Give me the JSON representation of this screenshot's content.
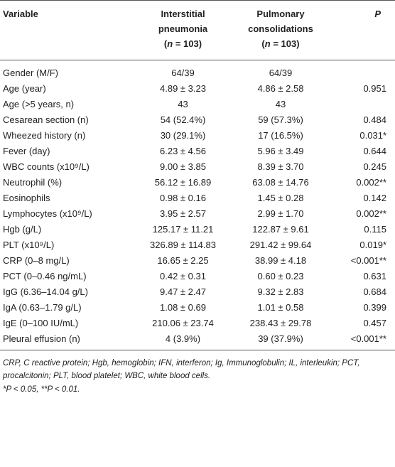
{
  "header": {
    "col1": "Variable",
    "col2_line1": "Interstitial",
    "col2_line2": "pneumonia",
    "col2_n": "n",
    "col2_eq": " = 103)",
    "col3_line1": "Pulmonary",
    "col3_line2": "consolidations",
    "col3_n": "n",
    "col3_eq": " = 103)",
    "col4": "P"
  },
  "rows": [
    {
      "variable": "Gender (M/F)",
      "interstitial": "64/39",
      "pulmonary": "64/39",
      "p": ""
    },
    {
      "variable": "Age (year)",
      "interstitial": "4.89 ± 3.23",
      "pulmonary": "4.86 ± 2.58",
      "p": "0.951"
    },
    {
      "variable": "Age (>5 years, n)",
      "interstitial": "43",
      "pulmonary": "43",
      "p": ""
    },
    {
      "variable": "Cesarean section (n)",
      "interstitial": "54 (52.4%)",
      "pulmonary": "59 (57.3%)",
      "p": "0.484"
    },
    {
      "variable": "Wheezed history (n)",
      "interstitial": "30 (29.1%)",
      "pulmonary": "17 (16.5%)",
      "p": "0.031*"
    },
    {
      "variable": "Fever (day)",
      "interstitial": "6.23 ± 4.56",
      "pulmonary": "5.96 ± 3.49",
      "p": "0.644"
    },
    {
      "variable": "WBC counts (x10⁹/L)",
      "interstitial": "9.00 ± 3.85",
      "pulmonary": "8.39 ± 3.70",
      "p": "0.245"
    },
    {
      "variable": "Neutrophil (%)",
      "interstitial": "56.12 ± 16.89",
      "pulmonary": "63.08 ± 14.76",
      "p": "0.002**"
    },
    {
      "variable": "Eosinophils",
      "interstitial": "0.98 ± 0.16",
      "pulmonary": "1.45 ± 0.28",
      "p": "0.142"
    },
    {
      "variable": "Lymphocytes (x10⁹/L)",
      "interstitial": "3.95 ± 2.57",
      "pulmonary": "2.99 ± 1.70",
      "p": "0.002**"
    },
    {
      "variable": "Hgb (g/L)",
      "interstitial": "125.17 ± 11.21",
      "pulmonary": "122.87 ± 9.61",
      "p": "0.115"
    },
    {
      "variable": "PLT (x10⁹/L)",
      "interstitial": "326.89 ± 114.83",
      "pulmonary": "291.42 ± 99.64",
      "p": "0.019*"
    },
    {
      "variable": "CRP (0–8 mg/L)",
      "interstitial": "16.65 ± 2.25",
      "pulmonary": "38.99 ± 4.18",
      "p": "<0.001**"
    },
    {
      "variable": "PCT (0–0.46 ng/mL)",
      "interstitial": "0.42 ± 0.31",
      "pulmonary": "0.60 ± 0.23",
      "p": "0.631"
    },
    {
      "variable": "IgG (6.36–14.04 g/L)",
      "interstitial": "9.47 ± 2.47",
      "pulmonary": "9.32 ± 2.83",
      "p": "0.684"
    },
    {
      "variable": "IgA (0.63–1.79 g/L)",
      "interstitial": "1.08 ± 0.69",
      "pulmonary": "1.01 ± 0.58",
      "p": "0.399"
    },
    {
      "variable": "IgE (0–100 IU/mL)",
      "interstitial": "210.06 ± 23.74",
      "pulmonary": "238.43 ± 29.78",
      "p": "0.457"
    },
    {
      "variable": "Pleural effusion (n)",
      "interstitial": "4 (3.9%)",
      "pulmonary": "39 (37.9%)",
      "p": "<0.001**"
    }
  ],
  "footnote": "CRP, C reactive protein; Hgb, hemoglobin; IFN, interferon; Ig, Immunoglobulin; IL, interleukin; PCT, procalcitonin; PLT, blood platelet; WBC, white blood cells.",
  "footnote2": "*P < 0.05, **P < 0.01."
}
